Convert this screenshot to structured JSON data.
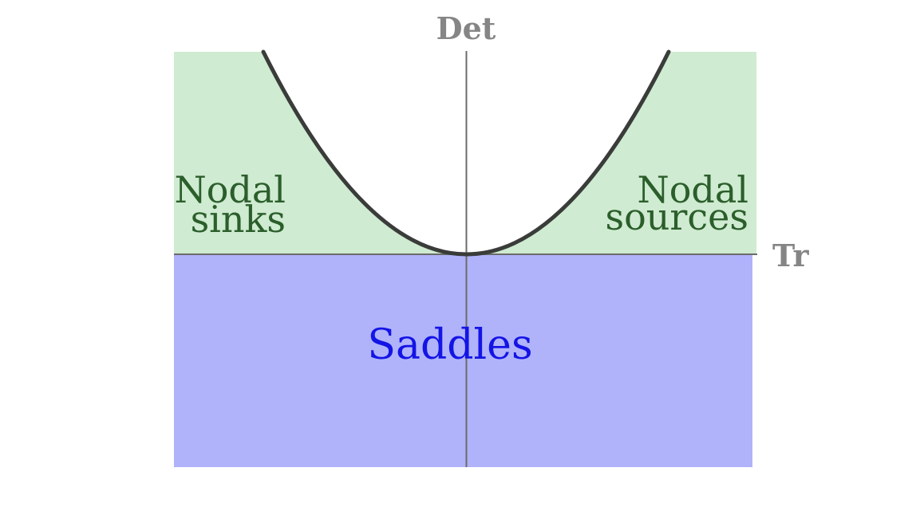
{
  "axes": {
    "vertical_label": "Det",
    "horizontal_label": "Tr"
  },
  "regions": {
    "nodal_sinks": {
      "line1": "Nodal",
      "line2": "sinks"
    },
    "nodal_sources": {
      "line1": "Nodal",
      "line2": "sources"
    },
    "saddles": {
      "label": "Saddles"
    }
  },
  "colors": {
    "nodal_fill": "#cfebd1",
    "saddle_fill": "#b0b3fa",
    "curve": "#3a3c3a",
    "axis": "#6b6b6b",
    "axis_label": "#858585",
    "nodal_text": "#2b5e2b",
    "saddle_text": "#1414e6"
  }
}
